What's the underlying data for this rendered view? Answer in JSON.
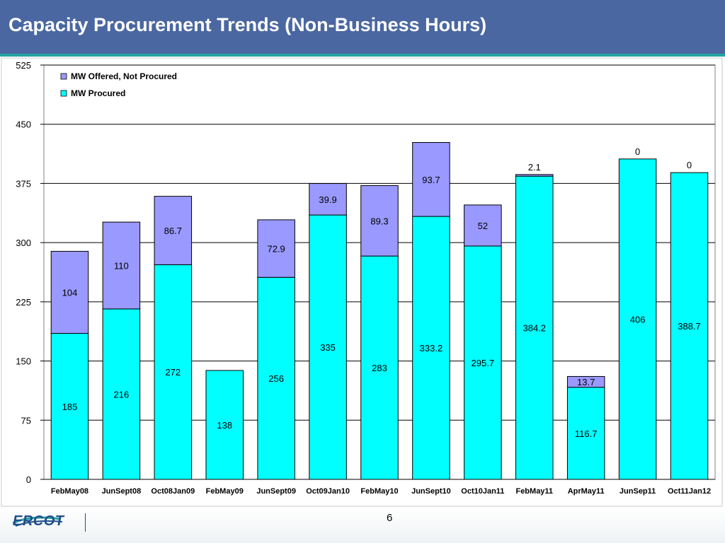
{
  "header": {
    "title": "Capacity Procurement Trends (Non-Business Hours)"
  },
  "colors": {
    "header_bg": "#4a67a1",
    "procured": "#00ffff",
    "offered": "#9999ff",
    "gridline": "#000000"
  },
  "footer": {
    "logo_text": "ERCOT",
    "page_number": "6"
  },
  "chart_data": {
    "type": "bar",
    "stacked": true,
    "title": "",
    "xlabel": "",
    "ylabel": "",
    "ylim": [
      0,
      525
    ],
    "yticks": [
      0,
      75,
      150,
      225,
      300,
      375,
      450,
      525
    ],
    "grid": true,
    "legend_position": "top-left",
    "categories": [
      "FebMay08",
      "JunSept08",
      "Oct08Jan09",
      "FebMay09",
      "JunSept09",
      "Oct09Jan10",
      "FebMay10",
      "JunSept10",
      "Oct10Jan11",
      "FebMay11",
      "AprMay11",
      "JunSep11",
      "Oct11Jan12"
    ],
    "series": [
      {
        "name": "MW Procured",
        "color": "#00ffff",
        "values": [
          185,
          216,
          272,
          138,
          256,
          335,
          283,
          333.2,
          295.7,
          384.2,
          116.7,
          406,
          388.7
        ],
        "labels": [
          "185",
          "216",
          "272",
          "138",
          "256",
          "335",
          "283",
          "333.2",
          "295.7",
          "384.2",
          "116.7",
          "406",
          "388.7"
        ]
      },
      {
        "name": "MW Offered, Not Procured",
        "color": "#9999ff",
        "values": [
          104,
          110,
          86.7,
          0,
          72.9,
          39.9,
          89.3,
          93.7,
          52,
          2.1,
          13.7,
          0,
          0
        ],
        "labels": [
          "104",
          "110",
          "86.7",
          "",
          "72.9",
          "39.9",
          "89.3",
          "93.7",
          "52",
          "2.1",
          "13.7",
          "0",
          "0"
        ]
      }
    ],
    "legend": [
      "MW Offered, Not Procured",
      "MW Procured"
    ]
  }
}
